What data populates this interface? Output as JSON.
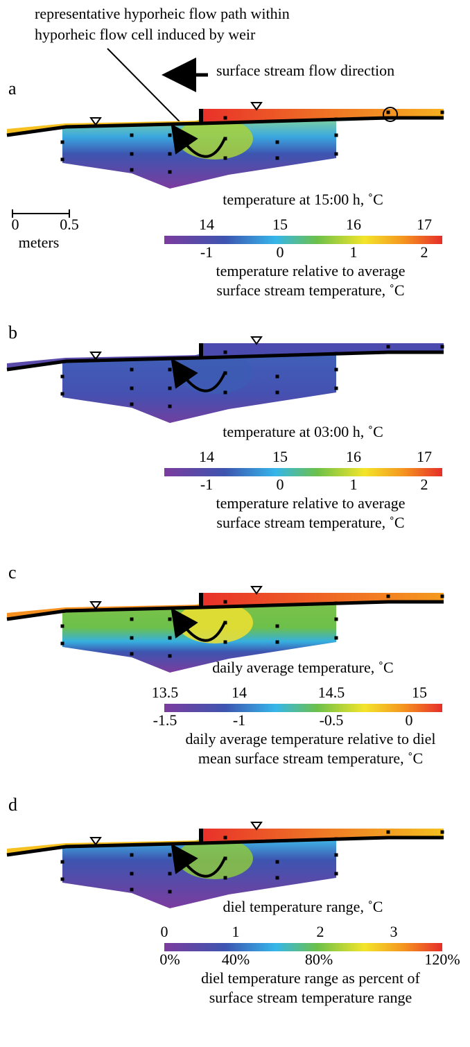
{
  "annotation": {
    "lines": [
      "representative hyporheic flow path within",
      "hyporheic flow cell induced by weir"
    ]
  },
  "flow_direction": "surface stream flow direction",
  "scale_bar": {
    "ticks": [
      "0",
      "0.5"
    ],
    "unit": "meters"
  },
  "panels": [
    {
      "label": "a",
      "colorbar": {
        "title": "temperature at 15:00 h, ˚C",
        "top_ticks": [
          "14",
          "15",
          "16",
          "17"
        ],
        "bottom_ticks": [
          "-1",
          "0",
          "1",
          "2"
        ],
        "caption": [
          "temperature relative to average",
          "surface stream temperature, ˚C"
        ]
      }
    },
    {
      "label": "b",
      "colorbar": {
        "title": "temperature at 03:00 h, ˚C",
        "top_ticks": [
          "14",
          "15",
          "16",
          "17"
        ],
        "bottom_ticks": [
          "-1",
          "0",
          "1",
          "2"
        ],
        "caption": [
          "temperature relative to average",
          "surface stream temperature, ˚C"
        ]
      }
    },
    {
      "label": "c",
      "colorbar": {
        "title": "daily average temperature, ˚C",
        "top_ticks": [
          "13.5",
          "14",
          "14.5",
          "15"
        ],
        "bottom_ticks": [
          "-1.5",
          "-1",
          "-0.5",
          "0"
        ],
        "caption": [
          "daily average temperature relative to diel",
          "mean surface stream temperature, ˚C"
        ]
      }
    },
    {
      "label": "d",
      "colorbar": {
        "title": "diel temperature range, ˚C",
        "top_ticks": [
          "0",
          "1",
          "2",
          "3"
        ],
        "bottom_ticks": [
          "0%",
          "40%",
          "80%",
          "120%"
        ],
        "caption": [
          "diel temperature range as percent of",
          "surface stream temperature range"
        ]
      }
    }
  ]
}
